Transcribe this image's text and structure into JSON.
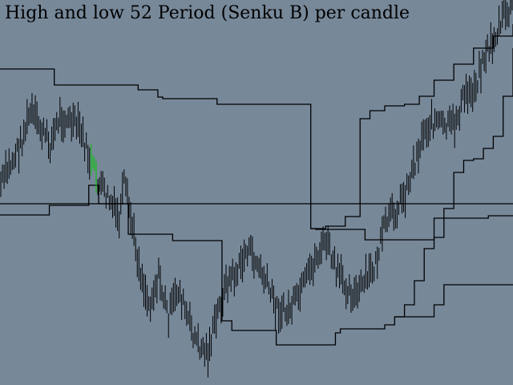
{
  "colors": {
    "background": "#778899",
    "candle": "#000000",
    "bull_highlight": "#00c800",
    "channel_line": "#000000",
    "title": "#000000"
  },
  "chart_data": {
    "type": "line",
    "title": "High and low 52 Period (Senku B) per candle",
    "xlabel": "",
    "ylabel": "",
    "grid": false,
    "legend": "none",
    "candle_count": 104,
    "value_range": [
      0,
      480
    ],
    "series": [
      {
        "key": "high52",
        "steps": [
          [
            0,
            86
          ],
          [
            10,
            86
          ],
          [
            11,
            106
          ],
          [
            26,
            106
          ],
          [
            28,
            112
          ],
          [
            31,
            112
          ],
          [
            32,
            121
          ],
          [
            33,
            123
          ],
          [
            43,
            123
          ],
          [
            44,
            130
          ],
          [
            49,
            130
          ],
          [
            50,
            130
          ],
          [
            61,
            130
          ],
          [
            62,
            130
          ],
          [
            63,
            285
          ],
          [
            64,
            286
          ],
          [
            72,
            286
          ],
          [
            74,
            299
          ],
          [
            82,
            299
          ],
          [
            87,
            299
          ],
          [
            88,
            272
          ],
          [
            97,
            272
          ],
          [
            99,
            269
          ],
          [
            104,
            269
          ]
        ]
      },
      {
        "key": "low52",
        "steps": [
          [
            0,
            268
          ],
          [
            9,
            268
          ],
          [
            10,
            256
          ],
          [
            17,
            256
          ],
          [
            18,
            231
          ],
          [
            19,
            231
          ],
          [
            20,
            254
          ],
          [
            25,
            254
          ],
          [
            26,
            292
          ],
          [
            34,
            292
          ],
          [
            35,
            300
          ],
          [
            44,
            300
          ],
          [
            45,
            400
          ],
          [
            46,
            400
          ],
          [
            47,
            412
          ],
          [
            55,
            412
          ],
          [
            56,
            430
          ],
          [
            57,
            430
          ],
          [
            67,
            430
          ],
          [
            68,
            415
          ],
          [
            69,
            410
          ],
          [
            75,
            410
          ],
          [
            78,
            405
          ],
          [
            80,
            395
          ],
          [
            86,
            395
          ],
          [
            88,
            380
          ],
          [
            90,
            355
          ],
          [
            104,
            355
          ]
        ]
      },
      {
        "key": "senku_b",
        "steps": [
          [
            0,
            254
          ],
          [
            104,
            254
          ]
        ]
      }
    ]
  },
  "chart_series_right": {
    "upper_tail": [
      [
        63,
        285
      ],
      [
        66,
        282
      ],
      [
        70,
        270
      ],
      [
        73,
        148
      ],
      [
        75,
        138
      ],
      [
        78,
        132
      ],
      [
        82,
        130
      ],
      [
        85,
        120
      ],
      [
        88,
        100
      ],
      [
        92,
        80
      ],
      [
        96,
        60
      ],
      [
        100,
        45
      ],
      [
        104,
        30
      ]
    ],
    "lower_tail": [
      [
        80,
        395
      ],
      [
        82,
        380
      ],
      [
        84,
        350
      ],
      [
        86,
        310
      ],
      [
        88,
        296
      ],
      [
        90,
        260
      ],
      [
        92,
        215
      ],
      [
        94,
        200
      ],
      [
        96,
        198
      ],
      [
        98,
        185
      ],
      [
        100,
        170
      ],
      [
        102,
        120
      ],
      [
        104,
        60
      ]
    ]
  }
}
